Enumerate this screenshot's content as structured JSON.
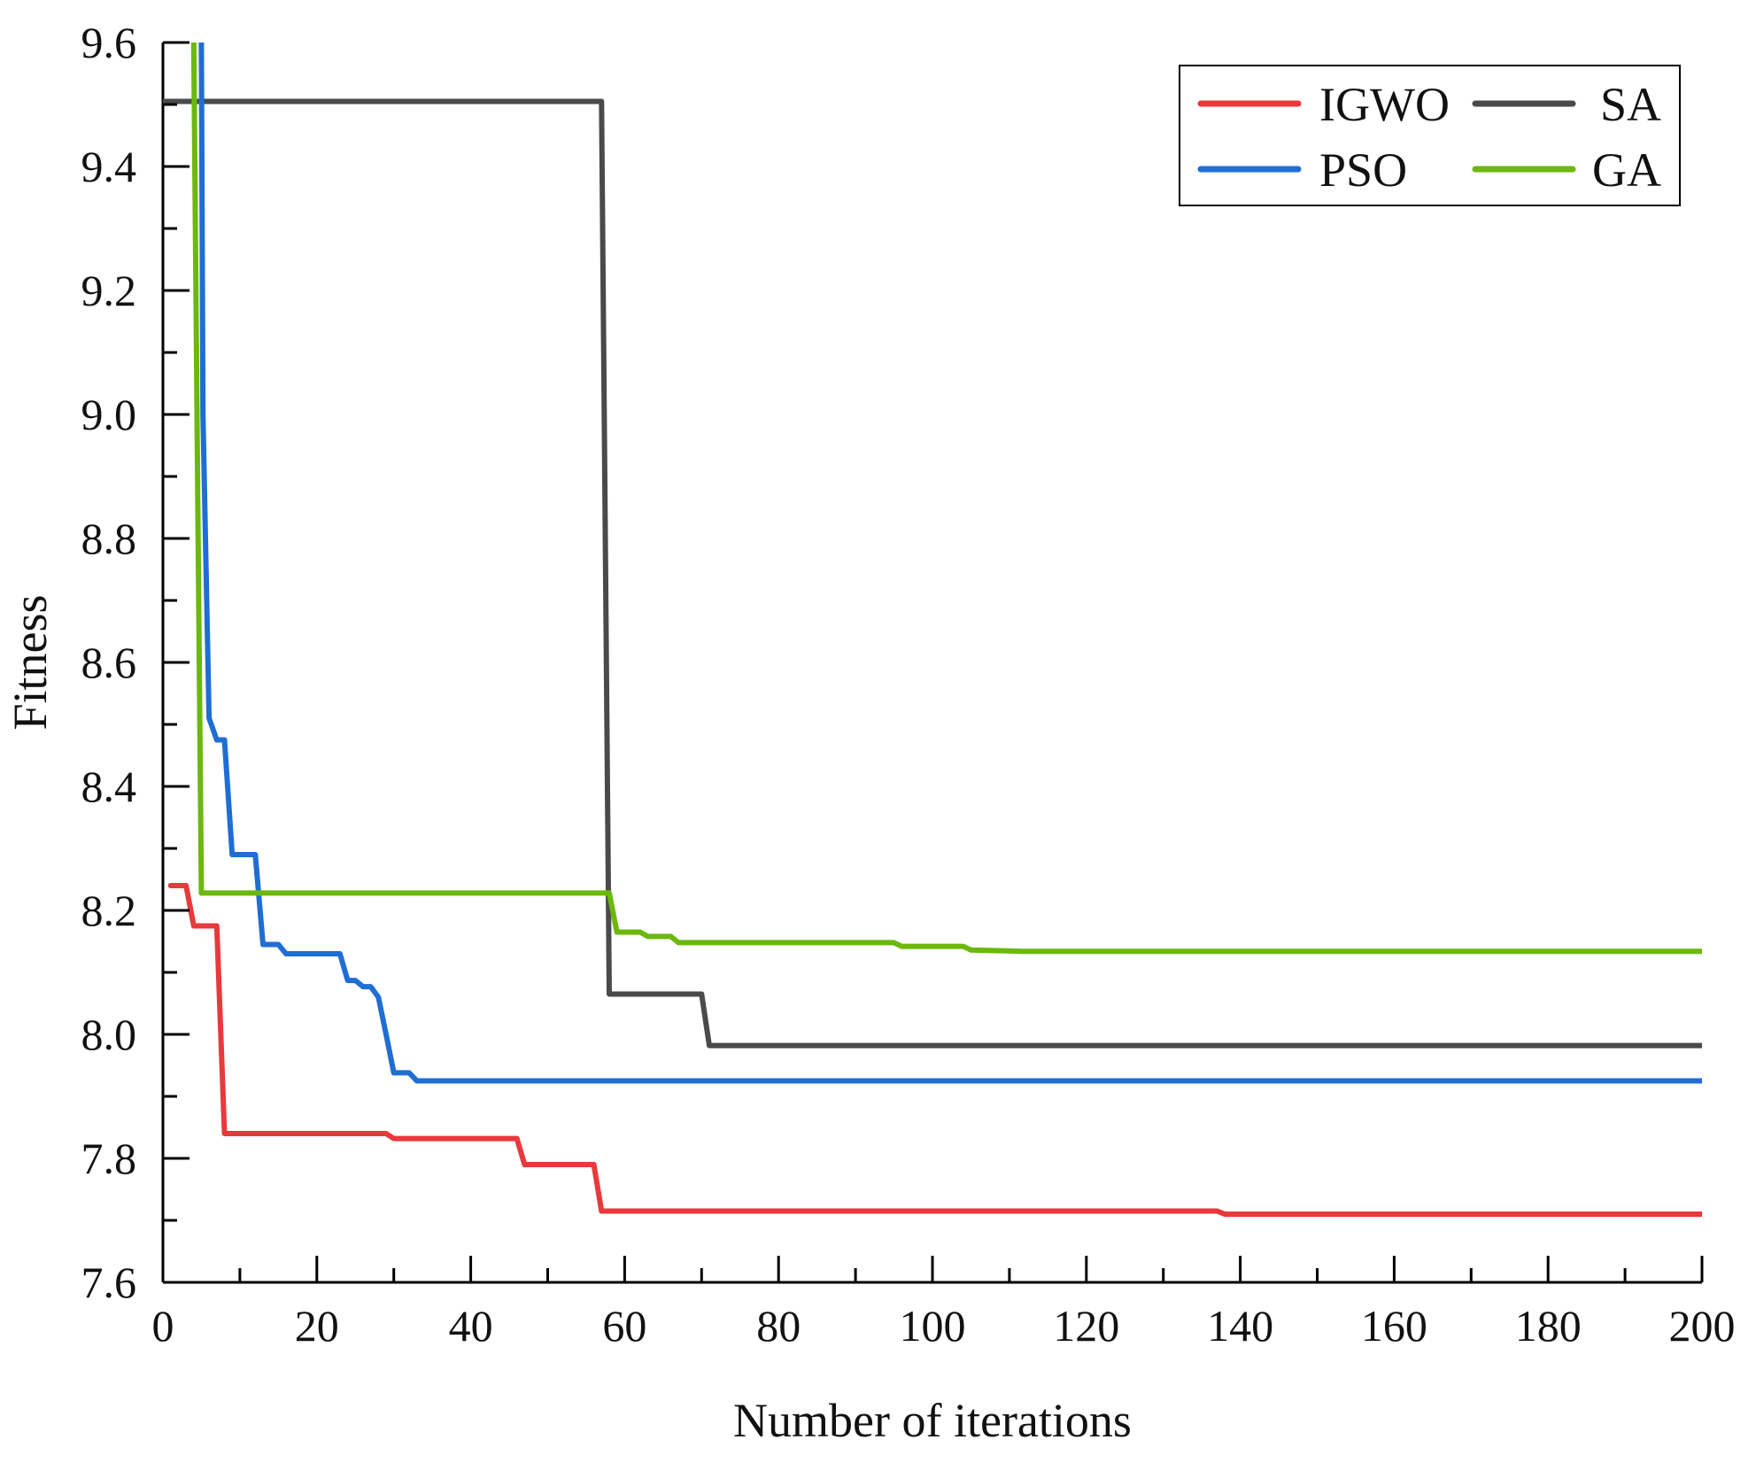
{
  "chart_data": {
    "type": "line",
    "title": "",
    "xlabel": "Number of iterations",
    "ylabel": "Fitness",
    "xlim": [
      0,
      200
    ],
    "ylim": [
      7.6,
      9.6
    ],
    "xticks": [
      0,
      20,
      40,
      60,
      80,
      100,
      120,
      140,
      160,
      180,
      200
    ],
    "xtick_labels": [
      "0",
      "20",
      "40",
      "60",
      "80",
      "100",
      "120",
      "140",
      "160",
      "180",
      "200"
    ],
    "yticks": [
      7.6,
      7.8,
      8.0,
      8.2,
      8.4,
      8.6,
      8.8,
      9.0,
      9.2,
      9.4,
      9.6
    ],
    "ytick_labels": [
      "7.6",
      "7.8",
      "8.0",
      "8.2",
      "8.4",
      "8.6",
      "8.8",
      "9.0",
      "9.2",
      "9.4",
      "9.6"
    ],
    "grid": false,
    "legend_position": "top-right",
    "series": [
      {
        "name": "IGWO",
        "color": "#e8393c",
        "points": [
          [
            1,
            8.24
          ],
          [
            3,
            8.24
          ],
          [
            4,
            8.175
          ],
          [
            7,
            8.175
          ],
          [
            8,
            7.84
          ],
          [
            29,
            7.84
          ],
          [
            30,
            7.832
          ],
          [
            46,
            7.832
          ],
          [
            47,
            7.79
          ],
          [
            56,
            7.79
          ],
          [
            57,
            7.715
          ],
          [
            137,
            7.715
          ],
          [
            138,
            7.71
          ],
          [
            200,
            7.71
          ]
        ]
      },
      {
        "name": "SA",
        "color": "#4a4a4a",
        "points": [
          [
            0,
            9.505
          ],
          [
            57,
            9.505
          ],
          [
            58,
            8.065
          ],
          [
            70,
            8.065
          ],
          [
            71,
            7.982
          ],
          [
            200,
            7.982
          ]
        ]
      },
      {
        "name": "PSO",
        "color": "#1f6ed4",
        "points": [
          [
            5,
            9.6
          ],
          [
            5.2,
            9.0
          ],
          [
            6,
            8.51
          ],
          [
            7,
            8.475
          ],
          [
            8,
            8.475
          ],
          [
            9,
            8.29
          ],
          [
            12,
            8.29
          ],
          [
            13,
            8.145
          ],
          [
            15,
            8.145
          ],
          [
            16,
            8.13
          ],
          [
            23,
            8.13
          ],
          [
            24,
            8.087
          ],
          [
            25,
            8.087
          ],
          [
            26,
            8.077
          ],
          [
            27,
            8.077
          ],
          [
            28,
            8.06
          ],
          [
            29,
            8.0
          ],
          [
            30,
            7.938
          ],
          [
            32,
            7.938
          ],
          [
            33,
            7.925
          ],
          [
            200,
            7.925
          ]
        ]
      },
      {
        "name": "GA",
        "color": "#6cb80e",
        "points": [
          [
            4,
            9.6
          ],
          [
            4.5,
            8.9
          ],
          [
            5,
            8.228
          ],
          [
            58,
            8.228
          ],
          [
            59,
            8.165
          ],
          [
            62,
            8.165
          ],
          [
            63,
            8.158
          ],
          [
            66,
            8.158
          ],
          [
            67,
            8.148
          ],
          [
            95,
            8.148
          ],
          [
            96,
            8.142
          ],
          [
            104,
            8.142
          ],
          [
            105,
            8.136
          ],
          [
            112,
            8.134
          ],
          [
            200,
            8.134
          ]
        ]
      }
    ]
  }
}
